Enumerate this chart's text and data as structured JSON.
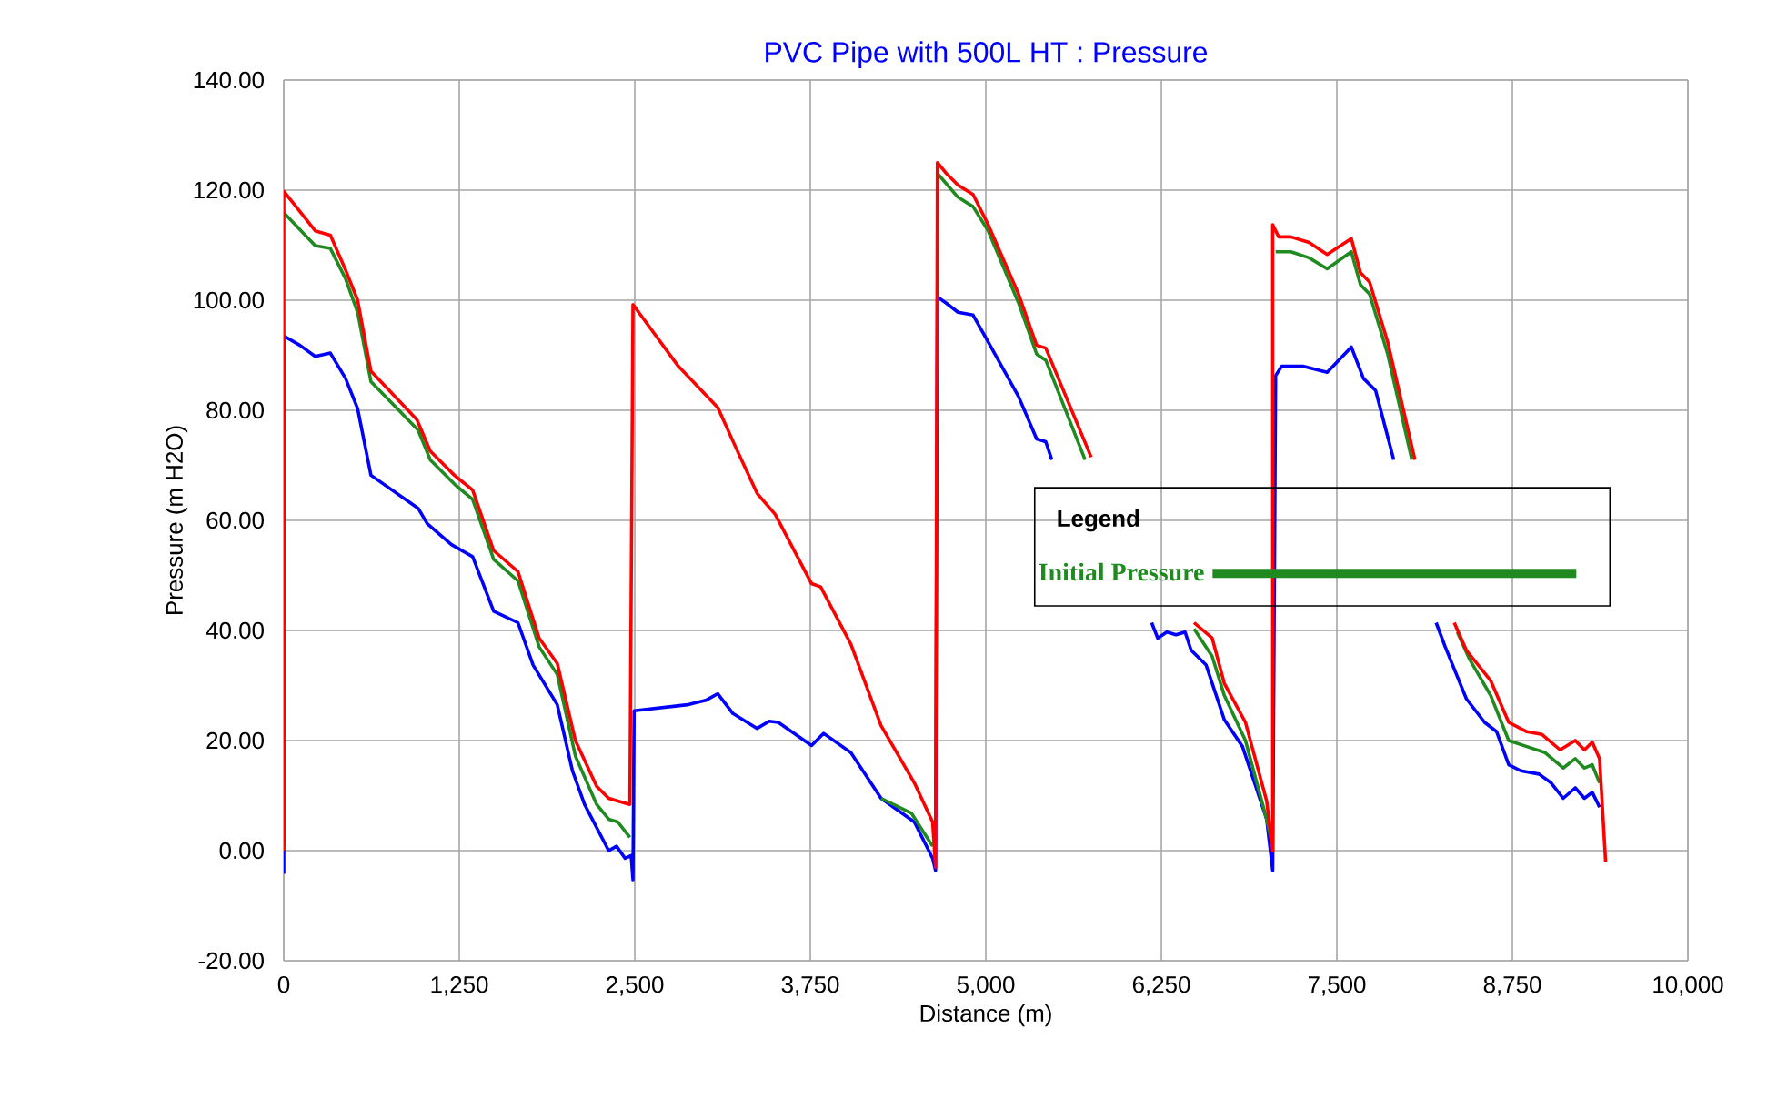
{
  "chart_data": {
    "type": "line",
    "title": "PVC Pipe with 500L HT : Pressure",
    "xlabel": "Distance (m)",
    "ylabel": "Pressure (m H2O)",
    "legend_title": "Legend",
    "legend": "center",
    "grid": true,
    "marker": "none",
    "line_style": "solid",
    "xlim": [
      0,
      10000
    ],
    "ylim": [
      -20,
      140
    ],
    "xticks": [
      0,
      {
        "value": 1250,
        "label": "1,250"
      },
      {
        "value": 2500,
        "label": "2,500"
      },
      {
        "value": 3750,
        "label": "3,750"
      },
      {
        "value": 5000,
        "label": "5,000"
      },
      {
        "value": 6250,
        "label": "6,250"
      },
      {
        "value": 7500,
        "label": "7,500"
      },
      {
        "value": 8750,
        "label": "8,750"
      },
      {
        "value": 10000,
        "label": "10,000"
      }
    ],
    "yticks": [
      {
        "value": -20,
        "label": "-20.00"
      },
      {
        "value": 0,
        "label": "0.00"
      },
      {
        "value": 20,
        "label": "20.00"
      },
      {
        "value": 40,
        "label": "40.00"
      },
      {
        "value": 60,
        "label": "60.00"
      },
      {
        "value": 80,
        "label": "80.00"
      },
      {
        "value": 100,
        "label": "100.00"
      },
      {
        "value": 120,
        "label": "120.00"
      },
      {
        "value": 140,
        "label": "140.00"
      }
    ],
    "series": [
      {
        "color": "#0000ff",
        "x": [
          0,
          0,
          116,
          224,
          332,
          440,
          526,
          621,
          957,
          1022,
          1194,
          1345,
          1495,
          1668,
          1776,
          1948,
          2056,
          2142,
          2314,
          2370,
          2431,
          2474,
          2487,
          2495,
          2875,
          3005,
          3091,
          3199,
          3371,
          3457,
          3522,
          3759,
          3845,
          4039,
          4254,
          4491,
          4621,
          4642,
          4655,
          4716,
          4802,
          4909,
          5017,
          5233,
          5362,
          5427,
          5470,
          5800,
          6181,
          6224,
          6289,
          6354,
          6419,
          6462,
          6569,
          6698,
          6828,
          7000,
          7043,
          7064,
          7107,
          7258,
          7431,
          7603,
          7689,
          7776,
          7905,
          8050,
          8207,
          8272,
          8422,
          8552,
          8638,
          8724,
          8810,
          8940,
          9026,
          9112,
          9198,
          9263,
          9319,
          9371
        ],
        "values": [
          -4.2,
          93.5,
          91.8,
          89.8,
          90.4,
          85.8,
          80.3,
          68.2,
          62.2,
          59.4,
          55.6,
          53.4,
          43.5,
          41.4,
          33.7,
          26.5,
          14.5,
          8.4,
          0,
          0.8,
          -1.4,
          -0.9,
          -5.3,
          25.4,
          26.5,
          27.3,
          28.5,
          24.9,
          22.2,
          23.5,
          23.3,
          19.1,
          21.3,
          17.8,
          9.5,
          5.2,
          -1.4,
          -3.6,
          100.6,
          99.5,
          97.8,
          97.3,
          92.4,
          82.5,
          74.8,
          74.3,
          71,
          null,
          41.4,
          38.6,
          39.7,
          39.2,
          39.7,
          36.4,
          33.7,
          23.8,
          18.9,
          5.7,
          -3.6,
          86.3,
          88,
          88,
          86.9,
          91.5,
          85.8,
          83.6,
          71,
          null,
          41.4,
          37,
          27.6,
          23.3,
          21.6,
          15.6,
          14.5,
          13.9,
          12.3,
          9.5,
          11.4,
          9.5,
          10.6,
          7.9
        ]
      },
      {
        "name": "Initial Pressure",
        "color": "#1f8a1f",
        "x": [
          0,
          224,
          332,
          440,
          526,
          621,
          957,
          1043,
          1215,
          1345,
          1495,
          1668,
          1819,
          1948,
          2077,
          2228,
          2314,
          2379,
          2465,
          3300,
          4254,
          4470,
          4621,
          4640,
          4653,
          4802,
          4909,
          5017,
          5233,
          5362,
          5427,
          5707,
          6100,
          6483,
          6612,
          6698,
          6849,
          7000,
          7043,
          7055,
          7064,
          7172,
          7302,
          7431,
          7603,
          7668,
          7733,
          7862,
          8034,
          8200,
          8358,
          8444,
          8595,
          8724,
          8853,
          8983,
          9112,
          9198,
          9263,
          9319,
          9371
        ],
        "values": [
          115.9,
          109.9,
          109.4,
          103.9,
          97.8,
          85.2,
          76.4,
          71,
          66.6,
          63.8,
          52.9,
          49,
          37,
          32,
          17.2,
          8.4,
          5.7,
          5.2,
          2.4,
          null,
          9.5,
          6.8,
          0.8,
          null,
          123.1,
          118.7,
          117,
          112.6,
          99.5,
          90.2,
          89.1,
          71,
          null,
          40.3,
          35.3,
          28.2,
          20,
          5.7,
          0.8,
          null,
          108.8,
          108.8,
          107.7,
          105.7,
          108.8,
          102.8,
          101.1,
          90.2,
          71,
          null,
          39.7,
          34.8,
          28.2,
          20,
          18.9,
          17.8,
          15,
          16.7,
          15,
          15.6,
          12.3
        ]
      },
      {
        "color": "#ff0000",
        "x": [
          0,
          0,
          224,
          332,
          440,
          526,
          621,
          948,
          1043,
          1215,
          1345,
          1495,
          1668,
          1819,
          1948,
          2077,
          2228,
          2314,
          2379,
          2465,
          2487,
          2810,
          3091,
          3220,
          3371,
          3500,
          3759,
          3824,
          4039,
          4254,
          4491,
          4621,
          4642,
          4655,
          4716,
          4802,
          4909,
          5017,
          5233,
          5362,
          5427,
          5750,
          6100,
          6483,
          6612,
          6698,
          6849,
          7000,
          7043,
          7043,
          7086,
          7172,
          7302,
          7431,
          7603,
          7668,
          7733,
          7862,
          8056,
          8200,
          8336,
          8422,
          8595,
          8724,
          8853,
          8961,
          9090,
          9198,
          9263,
          9319,
          9371,
          9414
        ],
        "values": [
          0,
          119.8,
          112.6,
          111.8,
          105.5,
          100,
          87.1,
          78.3,
          72.6,
          68.2,
          65.5,
          54.5,
          50.7,
          38.6,
          34,
          20,
          11.7,
          9.5,
          9,
          8.4,
          99.2,
          88,
          80.5,
          73.2,
          64.9,
          61.1,
          48.5,
          47.9,
          37.5,
          22.7,
          12.3,
          5.2,
          -3,
          125,
          123.1,
          120.9,
          119.2,
          113.7,
          101.1,
          91.8,
          91.3,
          71.5,
          null,
          41.4,
          38.6,
          30.4,
          23.3,
          9,
          0,
          113.7,
          111.5,
          111.5,
          110.5,
          108.3,
          111.2,
          105,
          103.3,
          92.4,
          71,
          null,
          41.4,
          36.4,
          30.9,
          23.3,
          21.6,
          21.1,
          18.3,
          20,
          18.3,
          19.7,
          16.7,
          -2
        ]
      }
    ]
  }
}
